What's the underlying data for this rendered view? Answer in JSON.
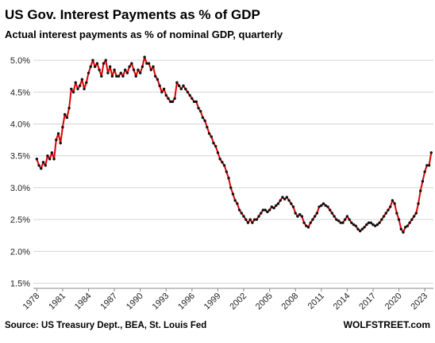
{
  "chart_data": {
    "type": "line",
    "title": "US Gov. Interest Payments as % of GDP",
    "subtitle": "Actual interest payments as % of nominal GDP, quarterly",
    "source": "Source: US Treasury Dept., BEA, St. Louis Fed",
    "credit": "WOLFSTREET.com",
    "xlim": [
      1977.6,
      2024.0
    ],
    "xticks": [
      1978,
      1981,
      1984,
      1987,
      1990,
      1993,
      1996,
      1999,
      2002,
      2005,
      2008,
      2011,
      2014,
      2017,
      2020,
      2023
    ],
    "ylim": [
      1.42,
      5.2
    ],
    "yticks": [
      {
        "value": 1.5,
        "label": "1.5%"
      },
      {
        "value": 2.0,
        "label": "2.0%"
      },
      {
        "value": 2.5,
        "label": "2.5%"
      },
      {
        "value": 3.0,
        "label": "3.0%"
      },
      {
        "value": 3.5,
        "label": "3.5%"
      },
      {
        "value": 4.0,
        "label": "4.0%"
      },
      {
        "value": 4.5,
        "label": "4.5%"
      },
      {
        "value": 5.0,
        "label": "5.0%"
      }
    ],
    "grid": true,
    "line_color": "#e00000",
    "marker_color": "#111111",
    "x": [
      1978,
      1978.25,
      1978.5,
      1978.75,
      1979,
      1979.25,
      1979.5,
      1979.75,
      1980,
      1980.25,
      1980.5,
      1980.75,
      1981,
      1981.25,
      1981.5,
      1981.75,
      1982,
      1982.25,
      1982.5,
      1982.75,
      1983,
      1983.25,
      1983.5,
      1983.75,
      1984,
      1984.25,
      1984.5,
      1984.75,
      1985,
      1985.25,
      1985.5,
      1985.75,
      1986,
      1986.25,
      1986.5,
      1986.75,
      1987,
      1987.25,
      1987.5,
      1987.75,
      1988,
      1988.25,
      1988.5,
      1988.75,
      1989,
      1989.25,
      1989.5,
      1989.75,
      1990,
      1990.25,
      1990.5,
      1990.75,
      1991,
      1991.25,
      1991.5,
      1991.75,
      1992,
      1992.25,
      1992.5,
      1992.75,
      1993,
      1993.25,
      1993.5,
      1993.75,
      1994,
      1994.25,
      1994.5,
      1994.75,
      1995,
      1995.25,
      1995.5,
      1995.75,
      1996,
      1996.25,
      1996.5,
      1996.75,
      1997,
      1997.25,
      1997.5,
      1997.75,
      1998,
      1998.25,
      1998.5,
      1998.75,
      1999,
      1999.25,
      1999.5,
      1999.75,
      2000,
      2000.25,
      2000.5,
      2000.75,
      2001,
      2001.25,
      2001.5,
      2001.75,
      2002,
      2002.25,
      2002.5,
      2002.75,
      2003,
      2003.25,
      2003.5,
      2003.75,
      2004,
      2004.25,
      2004.5,
      2004.75,
      2005,
      2005.25,
      2005.5,
      2005.75,
      2006,
      2006.25,
      2006.5,
      2006.75,
      2007,
      2007.25,
      2007.5,
      2007.75,
      2008,
      2008.25,
      2008.5,
      2008.75,
      2009,
      2009.25,
      2009.5,
      2009.75,
      2010,
      2010.25,
      2010.5,
      2010.75,
      2011,
      2011.25,
      2011.5,
      2011.75,
      2012,
      2012.25,
      2012.5,
      2012.75,
      2013,
      2013.25,
      2013.5,
      2013.75,
      2014,
      2014.25,
      2014.5,
      2014.75,
      2015,
      2015.25,
      2015.5,
      2015.75,
      2016,
      2016.25,
      2016.5,
      2016.75,
      2017,
      2017.25,
      2017.5,
      2017.75,
      2018,
      2018.25,
      2018.5,
      2018.75,
      2019,
      2019.25,
      2019.5,
      2019.75,
      2020,
      2020.25,
      2020.5,
      2020.75,
      2021,
      2021.25,
      2021.5,
      2021.75,
      2022,
      2022.25,
      2022.5,
      2022.75,
      2023,
      2023.25,
      2023.5,
      2023.75
    ],
    "values": [
      3.45,
      3.35,
      3.3,
      3.4,
      3.35,
      3.5,
      3.45,
      3.55,
      3.45,
      3.75,
      3.85,
      3.7,
      3.95,
      4.15,
      4.1,
      4.25,
      4.55,
      4.5,
      4.65,
      4.55,
      4.6,
      4.7,
      4.55,
      4.65,
      4.8,
      4.9,
      5.0,
      4.9,
      4.95,
      4.85,
      4.75,
      4.95,
      5.0,
      4.8,
      4.9,
      4.75,
      4.85,
      4.75,
      4.75,
      4.8,
      4.75,
      4.85,
      4.8,
      4.9,
      4.95,
      4.85,
      4.75,
      4.85,
      4.8,
      4.9,
      5.05,
      4.95,
      4.95,
      4.85,
      4.9,
      4.75,
      4.7,
      4.6,
      4.5,
      4.55,
      4.45,
      4.4,
      4.35,
      4.35,
      4.4,
      4.65,
      4.6,
      4.55,
      4.6,
      4.55,
      4.5,
      4.45,
      4.4,
      4.35,
      4.35,
      4.25,
      4.2,
      4.1,
      4.05,
      3.95,
      3.85,
      3.8,
      3.7,
      3.65,
      3.55,
      3.45,
      3.4,
      3.35,
      3.25,
      3.15,
      3.0,
      2.9,
      2.8,
      2.75,
      2.65,
      2.6,
      2.55,
      2.5,
      2.45,
      2.5,
      2.45,
      2.5,
      2.5,
      2.55,
      2.6,
      2.65,
      2.65,
      2.62,
      2.65,
      2.7,
      2.68,
      2.72,
      2.75,
      2.8,
      2.85,
      2.82,
      2.85,
      2.8,
      2.75,
      2.7,
      2.6,
      2.55,
      2.58,
      2.55,
      2.45,
      2.4,
      2.38,
      2.45,
      2.5,
      2.55,
      2.6,
      2.7,
      2.72,
      2.75,
      2.72,
      2.7,
      2.65,
      2.6,
      2.55,
      2.5,
      2.48,
      2.45,
      2.45,
      2.5,
      2.55,
      2.5,
      2.45,
      2.42,
      2.4,
      2.35,
      2.32,
      2.35,
      2.38,
      2.42,
      2.45,
      2.45,
      2.42,
      2.4,
      2.42,
      2.45,
      2.5,
      2.55,
      2.6,
      2.65,
      2.7,
      2.8,
      2.75,
      2.6,
      2.5,
      2.35,
      2.3,
      2.38,
      2.4,
      2.45,
      2.5,
      2.55,
      2.6,
      2.75,
      2.95,
      3.1,
      3.25,
      3.35,
      3.35,
      3.55
    ]
  }
}
